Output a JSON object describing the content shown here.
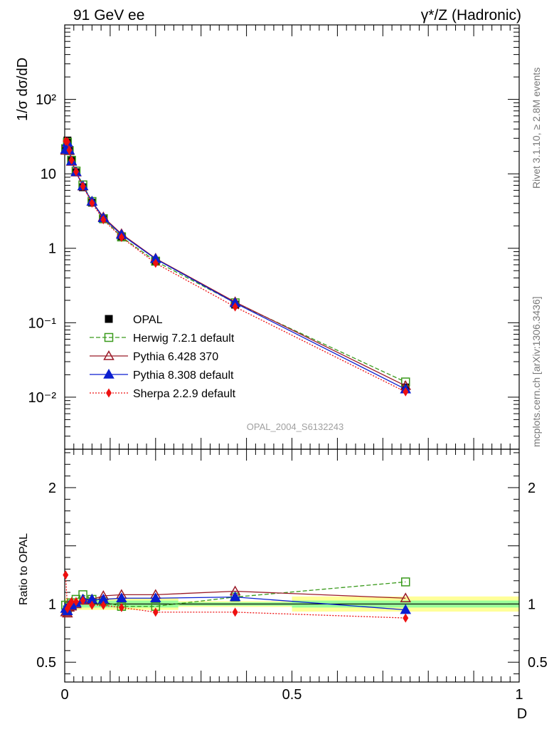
{
  "header": {
    "left": "91 GeV ee",
    "right": "γ*/Z (Hadronic)"
  },
  "side": {
    "rivet": "Rivet 3.1.10, ≥ 2.8M events",
    "mcplots": "mcplots.cern.ch [arXiv:1306.3436]"
  },
  "watermark": "OPAL_2004_S6132243",
  "chart_data": [
    {
      "type": "line",
      "ylabel": "1/σ dσ/dD",
      "xlabel": "D",
      "yscale": "log",
      "xlim": [
        0,
        1
      ],
      "ylim": [
        0.002,
        1000
      ],
      "yticks": [
        {
          "value": 0.01,
          "label": "10⁻²"
        },
        {
          "value": 0.1,
          "label": "10⁻¹"
        },
        {
          "value": 1,
          "label": "1"
        },
        {
          "value": 10,
          "label": "10"
        },
        {
          "value": 100,
          "label": "10²"
        }
      ],
      "x": [
        0.002,
        0.006,
        0.01,
        0.015,
        0.025,
        0.04,
        0.06,
        0.085,
        0.125,
        0.2,
        0.375,
        0.75
      ],
      "series": [
        {
          "name": "OPAL",
          "color": "#000000",
          "marker": "square-filled",
          "dash": "",
          "values": [
            22,
            28,
            21,
            15,
            10.5,
            6.6,
            4.1,
            2.45,
            1.45,
            0.68,
            0.175,
            0.0135
          ]
        },
        {
          "name": "Herwig 7.2.1 default",
          "color": "#3a9a1c",
          "marker": "square-open",
          "dash": "6,3",
          "values": [
            21.8,
            26.5,
            20.5,
            15.2,
            10.9,
            7.1,
            4.25,
            2.5,
            1.42,
            0.67,
            0.185,
            0.016
          ]
        },
        {
          "name": "Pythia 6.428 370",
          "color": "#9b1a28",
          "marker": "triangle-open",
          "dash": "",
          "values": [
            20.5,
            25.7,
            20.4,
            14.6,
            10.5,
            6.8,
            4.25,
            2.62,
            1.56,
            0.73,
            0.19,
            0.0142
          ]
        },
        {
          "name": "Pythia 8.308 default",
          "color": "#0a1ed0",
          "marker": "triangle-filled",
          "dash": "",
          "values": [
            21.2,
            26.3,
            20.8,
            14.8,
            10.6,
            6.85,
            4.25,
            2.55,
            1.52,
            0.72,
            0.184,
            0.0128
          ]
        },
        {
          "name": "Sherpa 2.2.9 default",
          "color": "#ee1010",
          "marker": "diamond-filled",
          "dash": "2,2",
          "values": [
            27.5,
            27.0,
            20.8,
            15.3,
            10.7,
            6.8,
            4.05,
            2.42,
            1.4,
            0.63,
            0.163,
            0.0118
          ]
        }
      ]
    },
    {
      "type": "line",
      "ylabel": "Ratio to OPAL",
      "xlabel": "D",
      "xlim": [
        0,
        1
      ],
      "ylim": [
        0.33,
        2.33
      ],
      "yticks": [
        {
          "value": 0.5,
          "label": "0.5"
        },
        {
          "value": 1,
          "label": "1"
        },
        {
          "value": 2,
          "label": "2"
        }
      ],
      "xticks": [
        {
          "value": 0,
          "label": "0"
        },
        {
          "value": 0.5,
          "label": "0.5"
        },
        {
          "value": 1,
          "label": "1"
        }
      ],
      "x": [
        0.002,
        0.006,
        0.01,
        0.015,
        0.025,
        0.04,
        0.06,
        0.085,
        0.125,
        0.2,
        0.375,
        0.75
      ],
      "uncertainty_bands": [
        {
          "x0": 0.0,
          "x1": 0.25,
          "stat_lo": 0.97,
          "stat_hi": 1.03,
          "tot_lo": 0.95,
          "tot_hi": 1.05
        },
        {
          "x0": 0.25,
          "x1": 0.5,
          "stat_lo": 0.985,
          "stat_hi": 1.015,
          "tot_lo": 0.975,
          "tot_hi": 1.025
        },
        {
          "x0": 0.5,
          "x1": 1.0,
          "stat_lo": 0.97,
          "stat_hi": 1.03,
          "tot_lo": 0.935,
          "tot_hi": 1.065
        }
      ],
      "series": [
        {
          "name": "Herwig 7.2.1 default",
          "color": "#3a9a1c",
          "marker": "square-open",
          "dash": "6,3",
          "values": [
            0.99,
            0.95,
            0.98,
            1.01,
            1.04,
            1.08,
            1.04,
            1.02,
            0.98,
            0.98,
            1.06,
            1.19
          ]
        },
        {
          "name": "Pythia 6.428 370",
          "color": "#9b1a28",
          "marker": "triangle-open",
          "dash": "",
          "values": [
            0.93,
            0.92,
            0.97,
            0.98,
            1.0,
            1.03,
            1.04,
            1.07,
            1.08,
            1.08,
            1.11,
            1.05
          ]
        },
        {
          "name": "Pythia 8.308 default",
          "color": "#0a1ed0",
          "marker": "triangle-filled",
          "dash": "",
          "values": [
            0.96,
            0.94,
            0.99,
            0.99,
            1.01,
            1.04,
            1.04,
            1.04,
            1.05,
            1.05,
            1.06,
            0.95
          ]
        },
        {
          "name": "Sherpa 2.2.9 default",
          "color": "#ee1010",
          "marker": "diamond-filled",
          "dash": "2,2",
          "values": [
            1.25,
            0.96,
            0.99,
            1.02,
            1.02,
            1.03,
            0.99,
            0.99,
            0.97,
            0.93,
            0.93,
            0.88
          ]
        }
      ]
    }
  ]
}
